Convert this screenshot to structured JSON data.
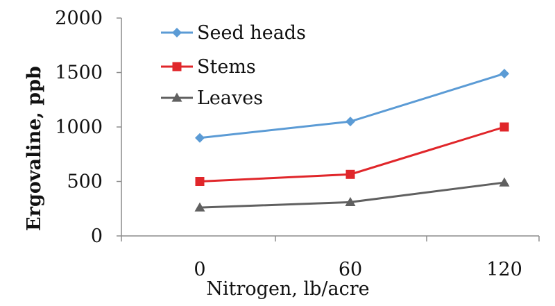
{
  "chart_data": {
    "type": "line",
    "title": "",
    "xlabel": "Nitrogen, lb/acre",
    "ylabel": "Ergovaline, ppb",
    "categories": [
      "0",
      "60",
      "120"
    ],
    "ylim": [
      0,
      2000
    ],
    "yticks": [
      0,
      500,
      1000,
      1500,
      2000
    ],
    "grid": false,
    "legend": "top-left",
    "series": [
      {
        "name": "Seed heads",
        "values": [
          900,
          1050,
          1490
        ],
        "color": "#5b9bd5",
        "marker": "diamond"
      },
      {
        "name": "Stems",
        "values": [
          500,
          565,
          1000
        ],
        "color": "#e0262a",
        "marker": "square"
      },
      {
        "name": "Leaves",
        "values": [
          260,
          310,
          490
        ],
        "color": "#606060",
        "marker": "triangle"
      }
    ]
  }
}
